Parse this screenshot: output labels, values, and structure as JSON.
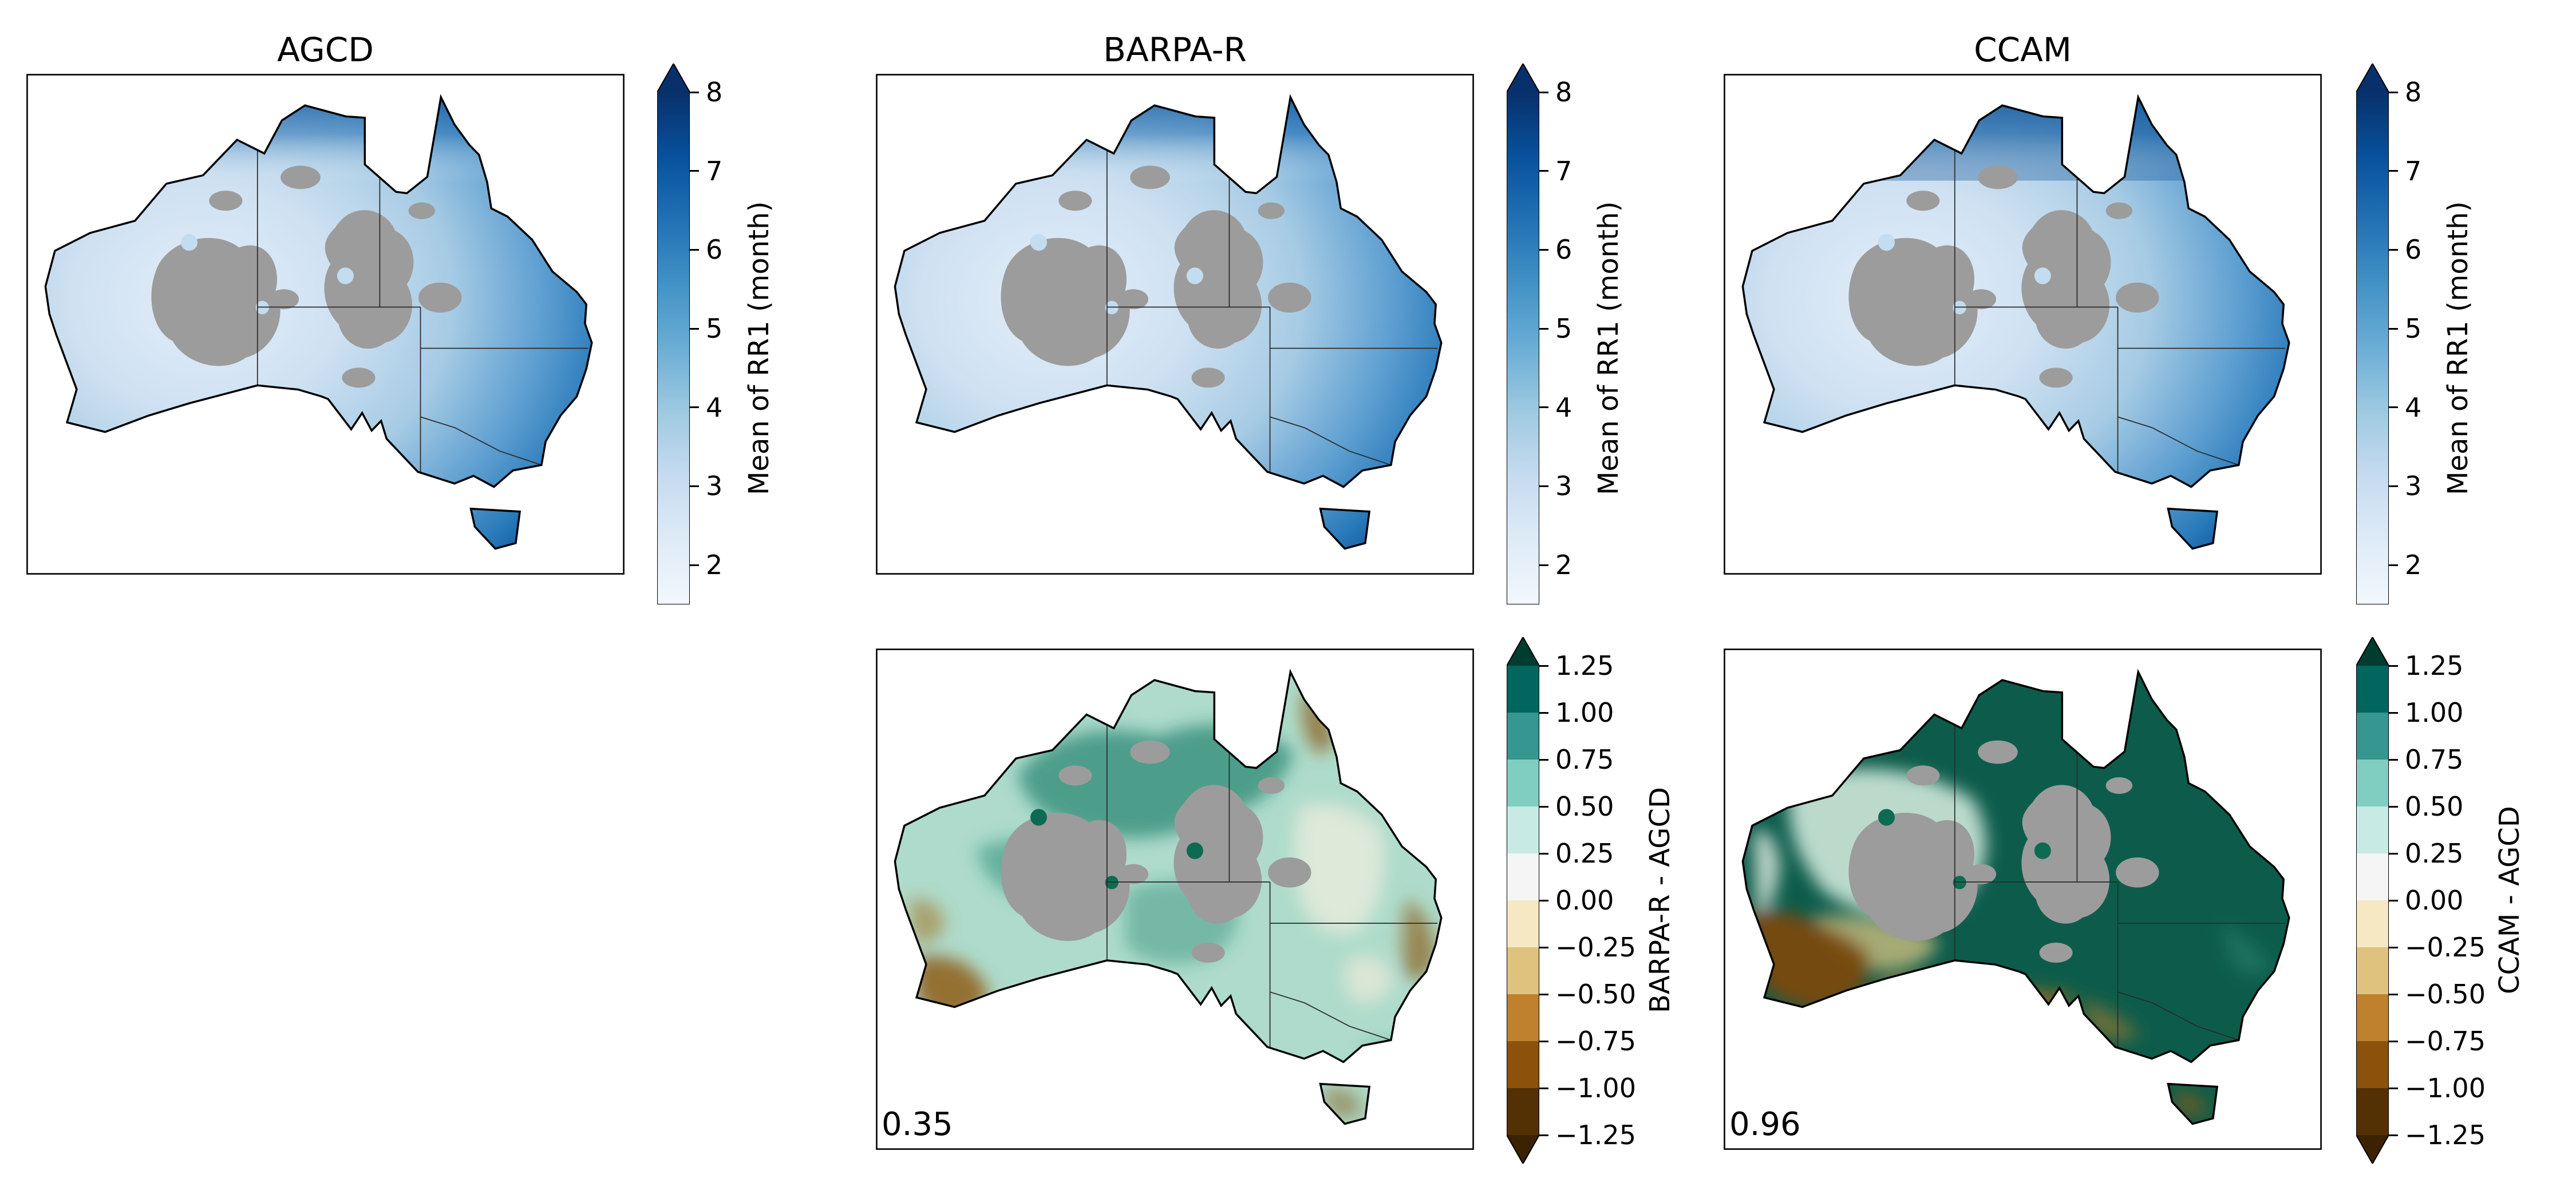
{
  "panels": {
    "agcd": {
      "title": "AGCD"
    },
    "barpa": {
      "title": "BARPA-R"
    },
    "ccam": {
      "title": "CCAM"
    },
    "barpa_diff": {
      "annotation": "0.35"
    },
    "ccam_diff": {
      "annotation": "0.96"
    }
  },
  "colorbars": {
    "mean": {
      "label": "Mean of RR1 (month)",
      "extend": "max",
      "vmin": 1.5,
      "vmax": 8,
      "tick_values": [
        8,
        7,
        6,
        5,
        4,
        3,
        2
      ],
      "tick_labels": [
        "8",
        "7",
        "6",
        "5",
        "4",
        "3",
        "2"
      ],
      "gradient": [
        "#08306b",
        "#08519c",
        "#2171b5",
        "#4292c6",
        "#6baed6",
        "#9ecae1",
        "#c6dbef",
        "#deebf7",
        "#f2f8fd"
      ],
      "arrow_top": "#08306b"
    },
    "diff_barpa": {
      "label": "BARPA-R - AGCD",
      "extend": "both",
      "vmin": -1.25,
      "vmax": 1.25,
      "tick_values": [
        1.25,
        1.0,
        0.75,
        0.5,
        0.25,
        0.0,
        -0.25,
        -0.5,
        -0.75,
        -1.0,
        -1.25
      ],
      "tick_labels": [
        "1.25",
        "1.00",
        "0.75",
        "0.50",
        "0.25",
        "0.00",
        "−0.25",
        "−0.50",
        "−0.75",
        "−1.00",
        "−1.25"
      ],
      "segments": [
        "#01665e",
        "#35978f",
        "#80cdc1",
        "#c7eae5",
        "#f5f5f5",
        "#f6e8c3",
        "#dfc27d",
        "#bf812d",
        "#8c510a",
        "#543005"
      ],
      "arrow_top": "#003c30",
      "arrow_bottom": "#3a2203"
    },
    "diff_ccam": {
      "label": "CCAM - AGCD",
      "extend": "both",
      "vmin": -1.25,
      "vmax": 1.25,
      "tick_values": [
        1.25,
        1.0,
        0.75,
        0.5,
        0.25,
        0.0,
        -0.25,
        -0.5,
        -0.75,
        -1.0,
        -1.25
      ],
      "tick_labels": [
        "1.25",
        "1.00",
        "0.75",
        "0.50",
        "0.25",
        "0.00",
        "−0.25",
        "−0.50",
        "−0.75",
        "−1.00",
        "−1.25"
      ],
      "segments": [
        "#01665e",
        "#35978f",
        "#80cdc1",
        "#c7eae5",
        "#f5f5f5",
        "#f6e8c3",
        "#dfc27d",
        "#bf812d",
        "#8c510a",
        "#543005"
      ],
      "arrow_top": "#003c30",
      "arrow_bottom": "#3a2203"
    }
  },
  "colors": {
    "masked_no_data": "#9c9c9c",
    "coastline": "#000000",
    "state_border": "#2a2a2a",
    "ocean_background": "#ffffff"
  },
  "chart_data": [
    {
      "type": "heatmap",
      "subtype": "geospatial_map",
      "panel": "top-left",
      "title": "AGCD",
      "region": "Australia",
      "value_label": "Mean of RR1 (month)",
      "colormap": "Blues",
      "color_range": {
        "vmin": 1.5,
        "vmax": 8,
        "extend": "max"
      },
      "colorbar_ticks": [
        2,
        3,
        4,
        5,
        6,
        7,
        8
      ],
      "masked_region_color": "#9c9c9c",
      "pattern": "Lowest values (~2, lightest blue) over the central-western interior; values increase toward all coasts, reaching ~7-8 (dark blue) along the far north, east and southeast coasts and Tasmania; large interior desert regions are masked gray (no data)."
    },
    {
      "type": "heatmap",
      "subtype": "geospatial_map",
      "panel": "top-middle",
      "title": "BARPA-R",
      "region": "Australia",
      "value_label": "Mean of RR1 (month)",
      "colormap": "Blues",
      "color_range": {
        "vmin": 1.5,
        "vmax": 8,
        "extend": "max"
      },
      "colorbar_ticks": [
        2,
        3,
        4,
        5,
        6,
        7,
        8
      ],
      "masked_region_color": "#9c9c9c",
      "pattern": "Similar gradient to AGCD but smoother: light (~2-3) interior and west, dark blue (~7-8) northern coast, east coast and Tasmania; same interior gray mask."
    },
    {
      "type": "heatmap",
      "subtype": "geospatial_map",
      "panel": "top-right",
      "title": "CCAM",
      "region": "Australia",
      "value_label": "Mean of RR1 (month)",
      "colormap": "Blues",
      "color_range": {
        "vmin": 1.5,
        "vmax": 8,
        "extend": "max"
      },
      "colorbar_ticks": [
        2,
        3,
        4,
        5,
        6,
        7,
        8
      ],
      "masked_region_color": "#9c9c9c",
      "pattern": "Like AGCD but with a notably darker (higher, ~7-8) northern third and east; light interior/west; same interior gray mask."
    },
    {
      "type": "heatmap",
      "subtype": "geospatial_difference_map",
      "panel": "bottom-middle",
      "title": "BARPA-R - AGCD",
      "region": "Australia",
      "colormap": "BrBG",
      "color_range": {
        "vmin": -1.25,
        "vmax": 1.25,
        "extend": "both"
      },
      "colorbar_ticks": [
        -1.25,
        -1.0,
        -0.75,
        -0.5,
        -0.25,
        0.0,
        0.25,
        0.5,
        0.75,
        1.0,
        1.25
      ],
      "mean_value_annotation": 0.35,
      "pattern": "Speckled, mostly positive (teal/green, ~0 to +0.75) differences over most of the continent; negative (brown) pockets in southwest WA, along parts of the east coast and eastern Cape York; interior gray mask."
    },
    {
      "type": "heatmap",
      "subtype": "geospatial_difference_map",
      "panel": "bottom-right",
      "title": "CCAM - AGCD",
      "region": "Australia",
      "colormap": "BrBG",
      "color_range": {
        "vmin": -1.25,
        "vmax": 1.25,
        "extend": "both"
      },
      "colorbar_ticks": [
        -1.25,
        -1.0,
        -0.75,
        -0.5,
        -0.25,
        0.0,
        0.25,
        0.5,
        0.75,
        1.0,
        1.25
      ],
      "mean_value_annotation": 0.96,
      "pattern": "Strong positive (dark green, >= +1) differences across northern and eastern Australia; strong negative (brown) in southwest WA and along the southern coastal strip; mixed over Tasmania; interior gray mask."
    }
  ],
  "layout_hint": {
    "grid": "2 rows x 3 columns",
    "empty_cells": [
      "bottom-left"
    ]
  }
}
